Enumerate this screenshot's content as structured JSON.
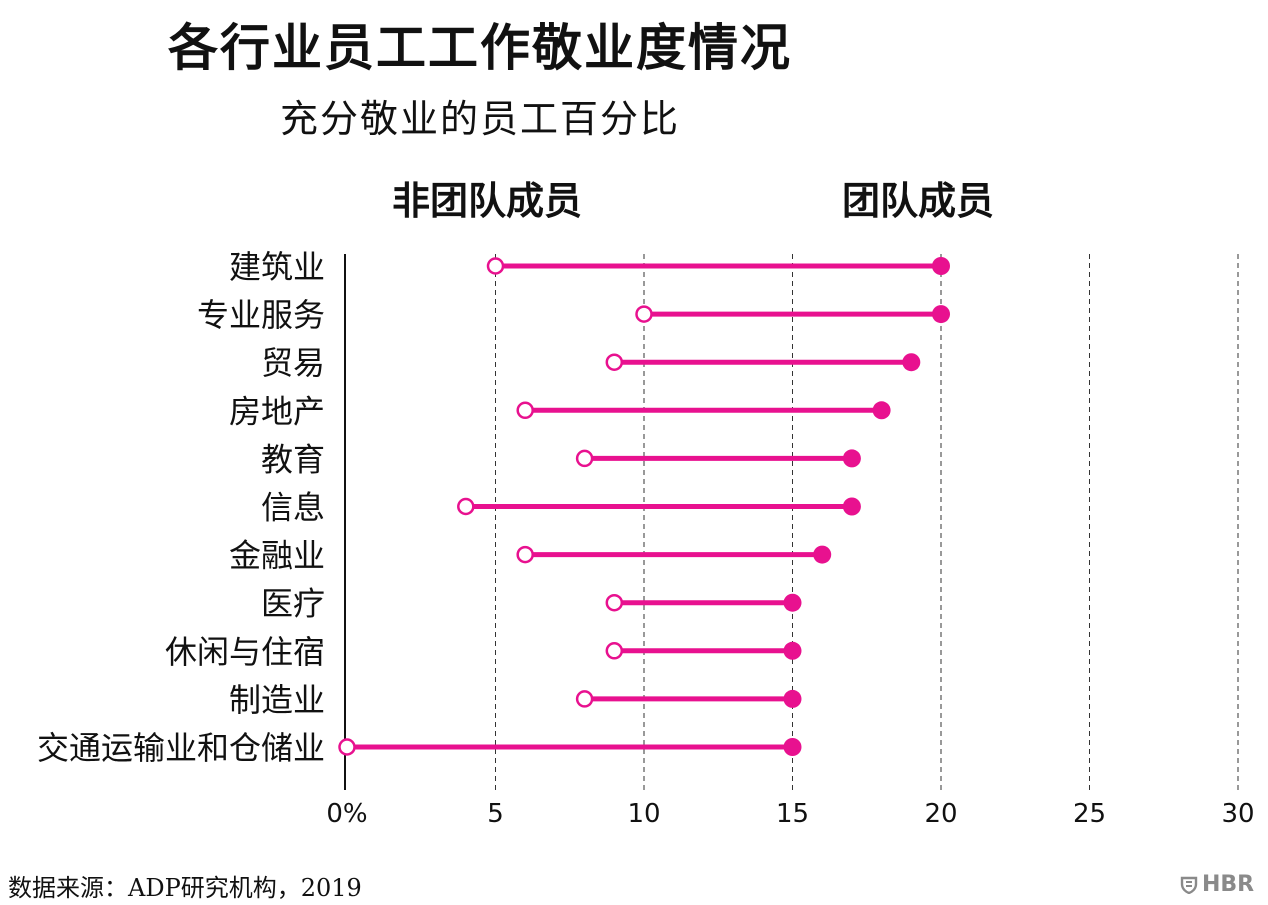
{
  "title": "各行业员工工作敬业度情况",
  "subtitle": "充分敬业的员工百分比",
  "source": "数据来源：ADP研究机构，2019",
  "logo_text": "HBR",
  "colors": {
    "accent": "#e8118f",
    "axis": "#111111",
    "grid": "#333333",
    "logo": "#8a8a8a"
  },
  "chart_data": {
    "type": "dumbbell",
    "series": [
      {
        "name": "非团队成员",
        "marker": "open-circle"
      },
      {
        "name": "团队成员",
        "marker": "filled-circle"
      }
    ],
    "categories": [
      "建筑业",
      "专业服务",
      "贸易",
      "房地产",
      "教育",
      "信息",
      "金融业",
      "医疗",
      "休闲与住宿",
      "制造业",
      "交通运输业和仓储业"
    ],
    "non_team": [
      5,
      10,
      9,
      6,
      8,
      4,
      6,
      9,
      9,
      8,
      0
    ],
    "team": [
      20,
      20,
      19,
      18,
      17,
      17,
      16,
      15,
      15,
      15,
      15
    ],
    "x_ticks": [
      0,
      5,
      10,
      15,
      20,
      25,
      30
    ],
    "x_tick_labels": [
      "0%",
      "5",
      "10",
      "15",
      "20",
      "25",
      "30"
    ],
    "xlim": [
      0,
      30
    ],
    "grid": "vertical dashed"
  }
}
